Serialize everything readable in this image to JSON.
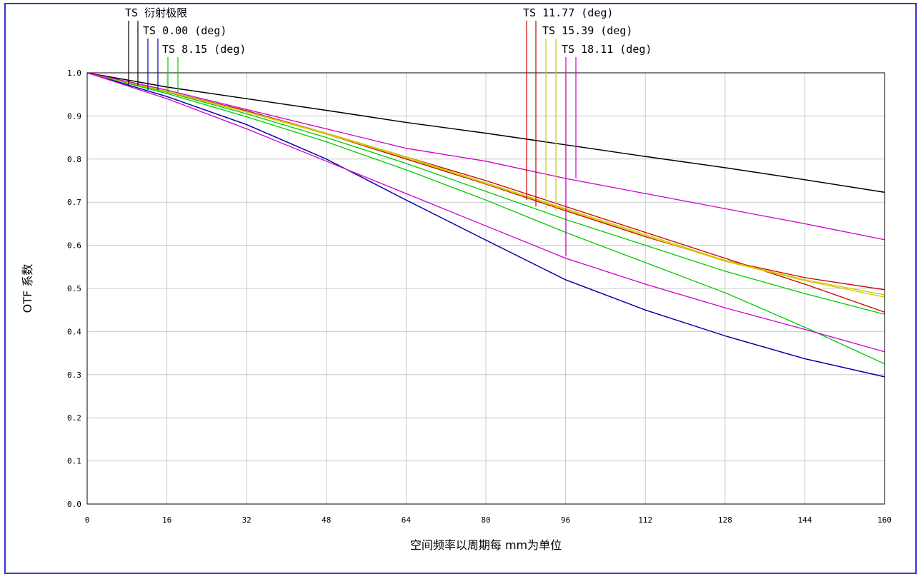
{
  "chart_data": {
    "type": "line",
    "xlabel": "空间频率以周期每 mm为单位",
    "ylabel": "OTF 系数",
    "xlim": [
      0,
      160
    ],
    "ylim": [
      0,
      1
    ],
    "x_ticks": [
      0,
      16,
      32,
      48,
      64,
      80,
      96,
      112,
      128,
      144,
      160
    ],
    "y_ticks": [
      0.0,
      0.1,
      0.2,
      0.3,
      0.4,
      0.5,
      0.6,
      0.7,
      0.8,
      0.9,
      1.0
    ],
    "grid": true,
    "x": [
      0,
      16,
      32,
      48,
      64,
      80,
      96,
      112,
      128,
      144,
      160
    ],
    "legend": [
      {
        "label": "TS 衍射极限",
        "colors": [
          "#000000",
          "#000000"
        ]
      },
      {
        "label": "TS 0.00 (deg)",
        "colors": [
          "#0000aa",
          "#0000aa"
        ]
      },
      {
        "label": "TS 8.15 (deg)",
        "colors": [
          "#00cc00",
          "#00cc00"
        ]
      },
      {
        "label": "TS 11.77 (deg)",
        "colors": [
          "#cc0000",
          "#cc0000"
        ]
      },
      {
        "label": "TS 15.39 (deg)",
        "colors": [
          "#cccc00",
          "#cccc00"
        ]
      },
      {
        "label": "TS 18.11 (deg)",
        "colors": [
          "#cc00cc",
          "#cc00cc"
        ]
      }
    ],
    "series": [
      {
        "name": "TS 衍射极限",
        "color": "#000000",
        "values": [
          1.0,
          0.967,
          0.94,
          0.913,
          0.885,
          0.86,
          0.833,
          0.806,
          0.78,
          0.752,
          0.723
        ]
      },
      {
        "color": "#000000",
        "values": [
          1.0,
          0.967,
          0.94,
          0.913,
          0.885,
          0.86,
          0.833,
          0.806,
          0.78,
          0.752,
          0.723
        ]
      },
      {
        "name": "TS 0.00 (deg)",
        "color": "#0000aa",
        "values": [
          1.0,
          0.945,
          0.88,
          0.8,
          0.705,
          0.612,
          0.52,
          0.45,
          0.39,
          0.337,
          0.295
        ]
      },
      {
        "color": "#0000aa",
        "values": [
          1.0,
          0.945,
          0.88,
          0.8,
          0.705,
          0.612,
          0.52,
          0.45,
          0.39,
          0.337,
          0.295
        ]
      },
      {
        "name": "TS 8.15 (deg)",
        "color": "#00cc00",
        "values": [
          1.0,
          0.952,
          0.898,
          0.84,
          0.775,
          0.705,
          0.63,
          0.56,
          0.49,
          0.41,
          0.325
        ]
      },
      {
        "color": "#00cc00",
        "values": [
          1.0,
          0.955,
          0.905,
          0.85,
          0.79,
          0.725,
          0.66,
          0.6,
          0.54,
          0.488,
          0.44
        ]
      },
      {
        "name": "TS 11.77 (deg)",
        "color": "#cc0000",
        "values": [
          1.0,
          0.957,
          0.912,
          0.86,
          0.805,
          0.75,
          0.69,
          0.63,
          0.57,
          0.51,
          0.445
        ]
      },
      {
        "color": "#cc0000",
        "values": [
          1.0,
          0.956,
          0.91,
          0.858,
          0.8,
          0.742,
          0.68,
          0.62,
          0.565,
          0.525,
          0.497
        ]
      },
      {
        "name": "TS 15.39 (deg)",
        "color": "#cccc00",
        "values": [
          1.0,
          0.957,
          0.91,
          0.86,
          0.805,
          0.745,
          0.685,
          0.625,
          0.565,
          0.52,
          0.485
        ]
      },
      {
        "color": "#cccc00",
        "values": [
          1.0,
          0.956,
          0.909,
          0.858,
          0.803,
          0.743,
          0.683,
          0.622,
          0.563,
          0.518,
          0.48
        ]
      },
      {
        "name": "TS 18.11 (deg)",
        "color": "#cc00cc",
        "values": [
          1.0,
          0.96,
          0.915,
          0.87,
          0.825,
          0.795,
          0.755,
          0.72,
          0.685,
          0.65,
          0.613
        ]
      },
      {
        "color": "#cc00cc",
        "values": [
          1.0,
          0.94,
          0.87,
          0.795,
          0.72,
          0.645,
          0.57,
          0.51,
          0.455,
          0.405,
          0.353
        ]
      }
    ]
  }
}
